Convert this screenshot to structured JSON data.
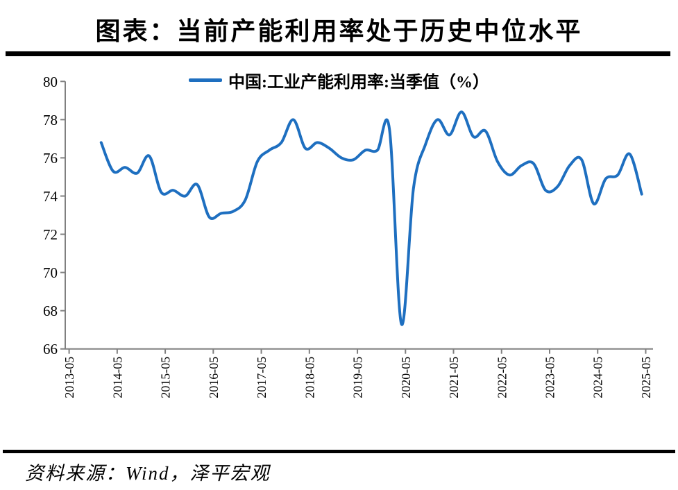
{
  "page": {
    "title": "图表：当前产能利用率处于历史中位水平",
    "source": "资料来源：Wind，泽平宏观"
  },
  "chart_data": {
    "type": "line",
    "title": "图表：当前产能利用率处于历史中位水平",
    "legend_position": "top",
    "grid": false,
    "xlabel": "",
    "ylabel": "",
    "ylim": [
      66,
      80
    ],
    "yticks": [
      66,
      68,
      70,
      72,
      74,
      76,
      78,
      80
    ],
    "xtick_labels": [
      "2013-05",
      "2014-05",
      "2015-05",
      "2016-05",
      "2017-05",
      "2018-05",
      "2019-05",
      "2020-05",
      "2021-05",
      "2022-05",
      "2023-05",
      "2024-05",
      "2025-05"
    ],
    "line_color": "#1E6FC0",
    "axis_color": "#808080",
    "series": [
      {
        "name": "中国:工业产能利用率:当季值（%）",
        "x": [
          "2013-12",
          "2014-03",
          "2014-06",
          "2014-09",
          "2014-12",
          "2015-03",
          "2015-06",
          "2015-09",
          "2015-12",
          "2016-03",
          "2016-06",
          "2016-09",
          "2016-12",
          "2017-03",
          "2017-06",
          "2017-09",
          "2017-12",
          "2018-03",
          "2018-06",
          "2018-09",
          "2018-12",
          "2019-03",
          "2019-06",
          "2019-09",
          "2019-12",
          "2020-03",
          "2020-06",
          "2020-09",
          "2020-12",
          "2021-03",
          "2021-06",
          "2021-09",
          "2021-12",
          "2022-03",
          "2022-06",
          "2022-09",
          "2022-12",
          "2023-03",
          "2023-06",
          "2023-09",
          "2023-12",
          "2024-03",
          "2024-06",
          "2024-09",
          "2024-12",
          "2025-03"
        ],
        "values": [
          76.8,
          75.3,
          75.5,
          75.2,
          76.1,
          74.2,
          74.3,
          74.0,
          74.6,
          72.9,
          73.1,
          73.2,
          73.8,
          75.8,
          76.4,
          76.8,
          78.0,
          76.5,
          76.8,
          76.5,
          76.0,
          75.9,
          76.4,
          76.4,
          77.5,
          67.3,
          74.4,
          76.7,
          78.0,
          77.2,
          78.4,
          77.1,
          77.4,
          75.8,
          75.1,
          75.6,
          75.7,
          74.3,
          74.5,
          75.6,
          75.9,
          73.6,
          74.9,
          75.1,
          76.2,
          74.1
        ]
      }
    ]
  }
}
